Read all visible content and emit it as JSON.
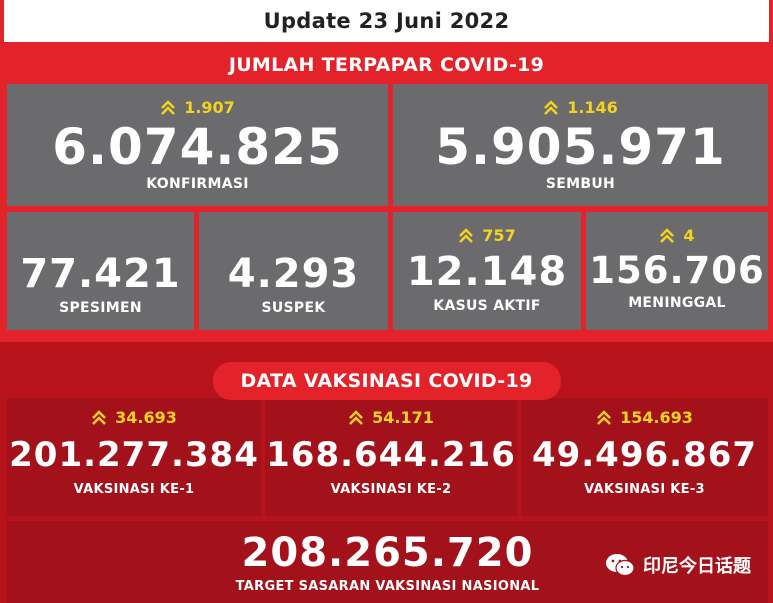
{
  "header": {
    "title": "Update 23 Juni 2022"
  },
  "covid": {
    "title": "JUMLAH TERPAPAR COVID-19",
    "konfirmasi": {
      "delta": "1.907",
      "value": "6.074.825",
      "label": "KONFIRMASI"
    },
    "sembuh": {
      "delta": "1.146",
      "value": "5.905.971",
      "label": "SEMBUH"
    },
    "spesimen": {
      "value": "77.421",
      "label": "SPESIMEN"
    },
    "suspek": {
      "value": "4.293",
      "label": "SUSPEK"
    },
    "kasus_aktif": {
      "delta": "757",
      "value": "12.148",
      "label": "KASUS AKTIF"
    },
    "meninggal": {
      "delta": "4",
      "value": "156.706",
      "label": "MENINGGAL"
    }
  },
  "vaksin": {
    "title": "DATA VAKSINASI COVID-19",
    "ke1": {
      "delta": "34.693",
      "value": "201.277.384",
      "label": "VAKSINASI KE-1"
    },
    "ke2": {
      "delta": "54.171",
      "value": "168.644.216",
      "label": "VAKSINASI KE-2"
    },
    "ke3": {
      "delta": "154.693",
      "value": "49.496.867",
      "label": "VAKSINASI KE-3"
    },
    "target": {
      "value": "208.265.720",
      "label": "TARGET SASARAN VAKSINASI NASIONAL"
    }
  },
  "watermark": {
    "text": "印尼今日话题",
    "icon": "wechat-icon"
  },
  "colors": {
    "red": "#e4222a",
    "dark_red": "#a3111b",
    "gray": "#6b6b6d",
    "yellow": "#f4d320"
  }
}
